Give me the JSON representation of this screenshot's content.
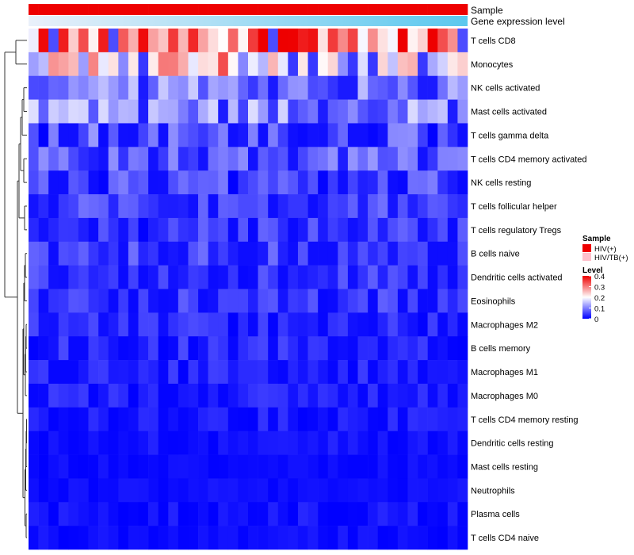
{
  "chart_data": {
    "type": "heatmap",
    "title": "",
    "annotation_tracks": [
      {
        "label": "Sample",
        "kind": "categorical",
        "values": [
          "HIV(+)",
          "HIV(+)",
          "HIV(+)",
          "HIV(+)",
          "HIV(+)",
          "HIV(+)",
          "HIV(+)",
          "HIV(+)",
          "HIV(+)",
          "HIV(+)",
          "HIV(+)",
          "HIV(+)",
          "HIV(+)",
          "HIV(+)",
          "HIV(+)",
          "HIV(+)",
          "HIV(+)",
          "HIV(+)",
          "HIV(+)",
          "HIV(+)",
          "HIV(+)",
          "HIV(+)",
          "HIV(+)",
          "HIV(+)",
          "HIV(+)",
          "HIV(+)",
          "HIV(+)",
          "HIV(+)",
          "HIV(+)",
          "HIV(+)",
          "HIV(+)",
          "HIV(+)",
          "HIV(+)",
          "HIV(+)",
          "HIV(+)",
          "HIV(+)",
          "HIV(+)",
          "HIV(+)",
          "HIV(+)",
          "HIV(+)",
          "HIV(+)",
          "HIV(+)",
          "HIV(+)",
          "HIV(+)"
        ]
      },
      {
        "label": "Gene expression level",
        "kind": "continuous",
        "gradient": [
          "#eaf0fa",
          "#5bc8ee"
        ]
      }
    ],
    "rows": [
      "T cells CD8",
      "Monocytes",
      "NK cells activated",
      "Mast cells activated",
      "T cells gamma delta",
      "T cells CD4 memory activated",
      "NK cells resting",
      "T cells follicular helper",
      "T cells regulatory  Tregs",
      "B cells naive",
      "Dendritic cells activated",
      "Eosinophils",
      "Macrophages M2",
      "B cells memory",
      "Macrophages M1",
      "Macrophages M0",
      "T cells CD4 memory resting",
      "Dendritic cells resting",
      "Mast cells resting",
      "Neutrophils",
      "Plasma cells",
      "T cells CD4 naive"
    ],
    "n_columns": 44,
    "values": [],
    "legend_sample": {
      "title": "Sample",
      "items": [
        {
          "label": "HIV(+)",
          "color": "#ee0000"
        },
        {
          "label": "HIV/TB(+)",
          "color": "#ffc0cb"
        }
      ]
    },
    "legend_level": {
      "title": "Level",
      "ticks": [
        "0.4",
        "0.3",
        "0.2",
        "0.1",
        "0"
      ],
      "range": [
        0,
        0.4
      ]
    },
    "colors": {
      "low": "#0000ff",
      "mid": "#ffffff",
      "high": "#ee0000",
      "hiv_pos": "#ee0000",
      "hiv_tb": "#ffc0cb"
    },
    "dendrogram": "rows"
  }
}
